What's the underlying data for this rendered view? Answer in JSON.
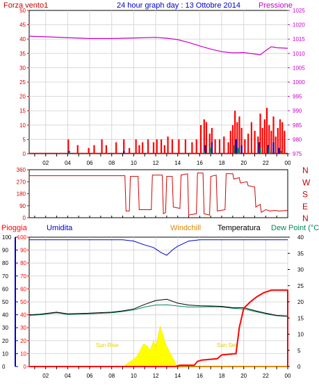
{
  "colors": {
    "wind": "#d40000",
    "gust": "#ff0000",
    "pressure": "#cc00cc",
    "humidity": "#0000cc",
    "temperature": "#000000",
    "dewpoint": "#008855",
    "windchill": "#dd8800",
    "rain": "#ff0000",
    "solar": "#ffff00",
    "solar_text": "#e0d000",
    "frame": "#000000",
    "grid": "#d8d8d8",
    "dir_axis": "#cc0000",
    "hum_axis": "#0000cc"
  },
  "chart_data": [
    {
      "type": "line",
      "title": "24 hour graph day : 13 Ottobre 2014",
      "left_label": "Forza vento1",
      "right_label": "Pressione",
      "x_ticks": [
        "02",
        "04",
        "06",
        "08",
        "10",
        "12",
        "14",
        "16",
        "18",
        "20",
        "22",
        "00"
      ],
      "y_left_ticks": [
        "0",
        "5",
        "10",
        "15",
        "20",
        "25",
        "30",
        "35",
        "40",
        "45",
        "50"
      ],
      "y_right_ticks": [
        "975",
        "980",
        "985",
        "990",
        "995",
        "1000",
        "1005",
        "1010",
        "1015",
        "1020",
        "1025"
      ],
      "ylim_left": [
        0,
        50
      ],
      "ylim_right": [
        975,
        1025
      ],
      "xlim": [
        0.5,
        24
      ],
      "grid": true,
      "series": [
        {
          "name": "Pressione",
          "axis": "right",
          "x": [
            0.5,
            2,
            4,
            6,
            8,
            10,
            12,
            13,
            14,
            15,
            16,
            17,
            18,
            19,
            20,
            21,
            21.5,
            22,
            22.5,
            23,
            24
          ],
          "values": [
            1016,
            1015.8,
            1015.5,
            1015.2,
            1015.2,
            1015.4,
            1015.6,
            1015.3,
            1014.8,
            1013.8,
            1012.6,
            1011.5,
            1010.6,
            1010.2,
            1010.3,
            1009.8,
            1009.5,
            1011,
            1012.3,
            1012,
            1011.8
          ]
        },
        {
          "name": "",
          "axis": "left",
          "x": [
            4.05,
            4.9,
            5.9,
            6.4,
            7.1,
            7.5,
            8.4,
            9.1,
            9.6,
            10.2,
            10.5,
            10.8,
            11.3,
            11.8,
            12.1,
            12.5,
            12.8,
            13.1,
            13.5,
            14.1,
            14.7,
            15.3,
            15.7,
            16.1,
            16.4,
            16.6,
            16.9,
            17.1,
            17.4,
            17.8,
            18.2,
            18.6,
            18.8,
            19.0,
            19.2,
            19.4,
            19.6,
            19.8,
            20.1,
            20.4,
            20.7,
            21.0,
            21.3,
            21.5,
            21.7,
            21.9,
            22.1,
            22.3,
            22.5,
            22.7,
            22.9,
            23.1,
            23.3,
            23.5,
            23.7
          ],
          "values": [
            5,
            3,
            2,
            3,
            5,
            3,
            4,
            5,
            2,
            5,
            3,
            4,
            5,
            4,
            5,
            5,
            3,
            6,
            5,
            5,
            5,
            4,
            5,
            10,
            12,
            11,
            7,
            9,
            5,
            5,
            6,
            4,
            8,
            10,
            15,
            11,
            13,
            9,
            5,
            7,
            11,
            8,
            6,
            14,
            9,
            12,
            16,
            10,
            8,
            13,
            6,
            9,
            12,
            11,
            8
          ]
        },
        {
          "name": "",
          "axis": "left",
          "x": [
            4.1,
            9.1,
            16.5,
            17.1,
            19.3,
            19.8,
            21.4,
            22.2,
            22.7,
            23.2
          ],
          "values": [
            1,
            1,
            3,
            4,
            5,
            3,
            4,
            3,
            4,
            2
          ]
        },
        {
          "name": "",
          "axis": "left",
          "x": [
            4.15,
            16.4,
            17.0,
            19.1,
            19.5,
            21.5,
            22.3,
            23.4
          ],
          "values": [
            1,
            1,
            2,
            3,
            2,
            2,
            2,
            1
          ]
        }
      ]
    },
    {
      "type": "line",
      "y_ticks": [
        "360",
        "270",
        "180",
        "90",
        "0"
      ],
      "y_right_ticks": [
        "N",
        "W",
        "S",
        "E",
        "N"
      ],
      "ylim": [
        0,
        360
      ],
      "xlim": [
        0.5,
        24
      ],
      "series": [
        {
          "name": "",
          "x": [
            0.5,
            8.0,
            8.6,
            9.2,
            9.3,
            9.6,
            9.7,
            10.4,
            10.5,
            11.6,
            11.7,
            12.6,
            12.7,
            12.9,
            13.0,
            13.5,
            13.6,
            14.2,
            14.3,
            14.9,
            15.0,
            15.7,
            15.8,
            16.3,
            16.4,
            16.9,
            17.0,
            17.5,
            17.6,
            18.3,
            18.4,
            19.0,
            19.1,
            19.6,
            19.7,
            20.3,
            20.4,
            21.0,
            21.1,
            21.5,
            21.6,
            22.0,
            22.4,
            22.8,
            23.2,
            24.0
          ],
          "values": [
            315,
            315,
            315,
            315,
            50,
            50,
            310,
            310,
            60,
            60,
            320,
            320,
            30,
            40,
            310,
            310,
            80,
            70,
            320,
            330,
            20,
            30,
            335,
            335,
            30,
            20,
            310,
            320,
            50,
            60,
            330,
            330,
            290,
            300,
            260,
            270,
            240,
            230,
            80,
            100,
            40,
            60,
            50,
            55,
            50,
            55
          ]
        }
      ]
    },
    {
      "type": "line",
      "left_label": "Pioggia",
      "labels": [
        "Umidita",
        "Windchill",
        "Temperatura",
        "Dew Point (°C"
      ],
      "annotations": [
        "Sun Rise",
        "Sun Set"
      ],
      "x_ticks": [
        "02",
        "04",
        "06",
        "08",
        "10",
        "12",
        "14",
        "16",
        "18",
        "20",
        "22",
        "00"
      ],
      "y_left_ticks": [
        "0",
        "10",
        "20",
        "30",
        "40",
        "50",
        "60",
        "70",
        "80",
        "90",
        "100"
      ],
      "y_right_ticks": [
        "0",
        "5",
        "10",
        "15",
        "20",
        "25",
        "30",
        "35",
        "40"
      ],
      "ylim_left": [
        0,
        100
      ],
      "ylim_right": [
        0,
        40
      ],
      "xlim": [
        0.5,
        24
      ],
      "grid": true,
      "series": [
        {
          "name": "Umidita",
          "axis": "left",
          "x": [
            0.5,
            9,
            10,
            11,
            11.8,
            12.5,
            13,
            13.5,
            14,
            14.5,
            15,
            16,
            20,
            24
          ],
          "values": [
            98,
            98,
            97,
            94,
            92,
            88,
            86,
            90,
            93,
            95,
            97,
            98,
            98,
            98
          ]
        },
        {
          "name": "Temperatura",
          "axis": "right",
          "x": [
            0.5,
            1.5,
            3,
            4,
            6,
            8,
            9,
            10,
            11,
            12,
            13,
            14,
            15,
            16,
            17,
            18,
            19,
            20,
            21,
            22,
            23,
            24
          ],
          "values": [
            16,
            16.2,
            16.8,
            16.3,
            16.5,
            16.8,
            17.2,
            17.8,
            19.2,
            20.4,
            20.8,
            19.6,
            19,
            18.8,
            18.7,
            18.6,
            18.2,
            18.2,
            17.3,
            16.5,
            15.8,
            15.6
          ]
        },
        {
          "name": "Dew Point (°C",
          "axis": "right",
          "x": [
            0.5,
            1.5,
            3,
            4,
            6,
            8,
            9,
            10,
            11,
            12,
            13,
            14,
            15,
            16,
            17,
            18,
            19,
            20,
            21,
            22,
            23,
            24
          ],
          "values": [
            15.8,
            16,
            16.6,
            16.1,
            16.3,
            16.6,
            17,
            17.5,
            18.4,
            19.0,
            19.1,
            18.7,
            18.4,
            18.4,
            18.5,
            18.4,
            18.0,
            17.8,
            17,
            16.3,
            15.7,
            15.5
          ]
        },
        {
          "name": "Windchill",
          "axis": "right",
          "x": [
            0.5,
            24
          ],
          "values": [
            0,
            0
          ]
        },
        {
          "name": "Pioggia",
          "axis": "left",
          "x": [
            0.5,
            13.8,
            14.2,
            15.5,
            15.8,
            16.2,
            17.6,
            18.0,
            19.3,
            19.6,
            20.0,
            20.6,
            21.2,
            21.8,
            22.5,
            24.0,
            24.0
          ],
          "values": [
            0,
            0,
            1,
            1,
            4,
            5,
            6,
            9,
            10,
            30,
            45,
            50,
            54,
            57,
            59,
            59,
            0
          ]
        },
        {
          "name": "",
          "axis": "right",
          "x": [
            9.2,
            9.6,
            10.0,
            10.3,
            10.6,
            10.9,
            11.2,
            11.5,
            11.8,
            12.0,
            12.2,
            12.4,
            12.6,
            12.9,
            13.2,
            13.5,
            13.9
          ],
          "values": [
            0.4,
            1.4,
            2.2,
            3.2,
            5.0,
            7.0,
            6.5,
            5.0,
            8.0,
            6.0,
            9.0,
            12.5,
            10.5,
            7.0,
            5.0,
            3.0,
            0.5
          ]
        }
      ]
    }
  ]
}
